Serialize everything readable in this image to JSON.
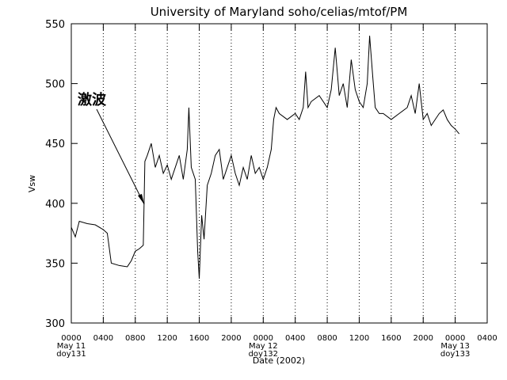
{
  "chart_data": {
    "type": "line",
    "title": "University of Maryland  soho/celias/mtof/PM",
    "xlabel": "Date (2002)",
    "ylabel": "Vsw",
    "annotation": "激波",
    "x": [
      0,
      0.5,
      1,
      2,
      3,
      4,
      4.5,
      5,
      6,
      7,
      7.5,
      8,
      8.5,
      9,
      9.2,
      9.5,
      10,
      10.5,
      11,
      11.5,
      12,
      12.5,
      13,
      13.5,
      14,
      14.5,
      14.7,
      15,
      15.5,
      15.8,
      16,
      16.3,
      16.6,
      17,
      17.5,
      18,
      18.5,
      19,
      19.5,
      20,
      20.5,
      21,
      21.5,
      22,
      22.5,
      23,
      23.5,
      24,
      24.5,
      25,
      25.3,
      25.6,
      26,
      27,
      28,
      28.5,
      29,
      29.3,
      29.6,
      30,
      31,
      32,
      32.5,
      33,
      33.5,
      34,
      34.5,
      35,
      35.5,
      36,
      36.5,
      37,
      37.3,
      37.7,
      38,
      38.5,
      39,
      40,
      41,
      42,
      42.5,
      43,
      43.5,
      44,
      44.5,
      45,
      46,
      46.5,
      47,
      47.5,
      48,
      48.5
    ],
    "series": [
      {
        "name": "Vsw",
        "color": "#000000",
        "values": [
          380,
          372,
          385,
          383,
          382,
          378,
          375,
          350,
          348,
          347,
          352,
          360,
          362,
          365,
          435,
          440,
          450,
          430,
          440,
          425,
          432,
          420,
          430,
          440,
          420,
          445,
          480,
          430,
          420,
          360,
          337,
          390,
          370,
          415,
          425,
          440,
          445,
          420,
          430,
          440,
          425,
          415,
          430,
          420,
          440,
          425,
          430,
          420,
          430,
          445,
          470,
          480,
          475,
          470,
          475,
          470,
          480,
          510,
          480,
          485,
          490,
          480,
          495,
          530,
          490,
          500,
          480,
          520,
          495,
          485,
          480,
          500,
          540,
          505,
          480,
          475,
          475,
          470,
          475,
          480,
          490,
          475,
          500,
          470,
          475,
          465,
          475,
          478,
          470,
          465,
          462,
          458
        ]
      }
    ],
    "xlim": [
      0,
      52
    ],
    "xticks": [
      {
        "value": 0,
        "label": "0000"
      },
      {
        "value": 4,
        "label": "0400"
      },
      {
        "value": 8,
        "label": "0800"
      },
      {
        "value": 12,
        "label": "1200"
      },
      {
        "value": 16,
        "label": "1600"
      },
      {
        "value": 20,
        "label": "2000"
      },
      {
        "value": 24,
        "label": "0000"
      },
      {
        "value": 28,
        "label": "0400"
      },
      {
        "value": 32,
        "label": "0800"
      },
      {
        "value": 36,
        "label": "1200"
      },
      {
        "value": 40,
        "label": "1600"
      },
      {
        "value": 44,
        "label": "2000"
      },
      {
        "value": 48,
        "label": "0000"
      },
      {
        "value": 52,
        "label": "0400"
      }
    ],
    "date_labels": [
      {
        "value": 0,
        "lines": [
          "May 11",
          "doy131"
        ]
      },
      {
        "value": 24,
        "lines": [
          "May 12",
          "doy132"
        ]
      },
      {
        "value": 48,
        "lines": [
          "May 13",
          "doy133"
        ]
      }
    ],
    "ylim": [
      300,
      550
    ],
    "yticks": [
      300,
      350,
      400,
      450,
      500,
      550
    ],
    "grid": true
  }
}
